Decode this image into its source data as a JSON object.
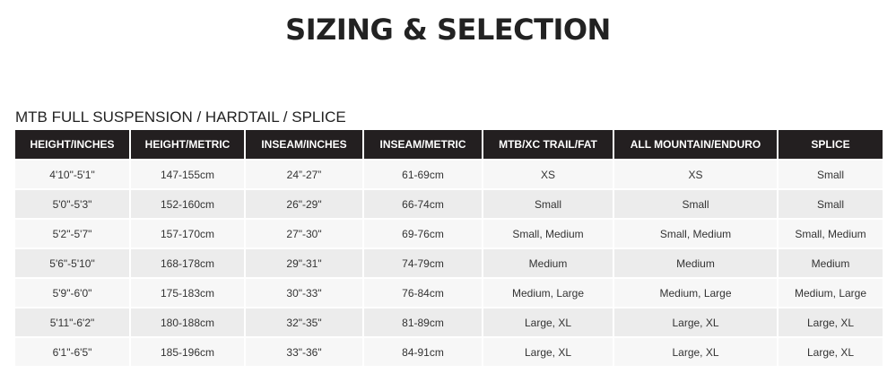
{
  "title": "SIZING & SELECTION",
  "subtitle": "MTB FULL SUSPENSION / HARDTAIL / SPLICE",
  "table": {
    "headers": [
      "HEIGHT/INCHES",
      "HEIGHT/METRIC",
      "INSEAM/INCHES",
      "INSEAM/METRIC",
      "MTB/XC TRAIL/FAT",
      "ALL MOUNTAIN/ENDURO",
      "SPLICE"
    ],
    "rows": [
      [
        "4'10\"-5'1\"",
        "147-155cm",
        "24”-27”",
        "61-69cm",
        "XS",
        "XS",
        "Small"
      ],
      [
        "5'0\"-5'3\"",
        "152-160cm",
        "26\"-29\"",
        "66-74cm",
        "Small",
        "Small",
        "Small"
      ],
      [
        "5'2\"-5'7\"",
        "157-170cm",
        "27\"-30\"",
        "69-76cm",
        "Small, Medium",
        "Small, Medium",
        "Small, Medium"
      ],
      [
        "5'6\"-5'10\"",
        "168-178cm",
        "29\"-31\"",
        "74-79cm",
        "Medium",
        "Medium",
        "Medium"
      ],
      [
        "5'9\"-6'0\"",
        "175-183cm",
        "30\"-33\"",
        "76-84cm",
        "Medium, Large",
        "Medium, Large",
        "Medium, Large"
      ],
      [
        "5'11\"-6'2\"",
        "180-188cm",
        "32\"-35\"",
        "81-89cm",
        "Large, XL",
        "Large, XL",
        "Large, XL"
      ],
      [
        "6'1\"-6'5\"",
        "185-196cm",
        "33\"-36\"",
        "84-91cm",
        "Large, XL",
        "Large, XL",
        "Large, XL"
      ]
    ]
  }
}
